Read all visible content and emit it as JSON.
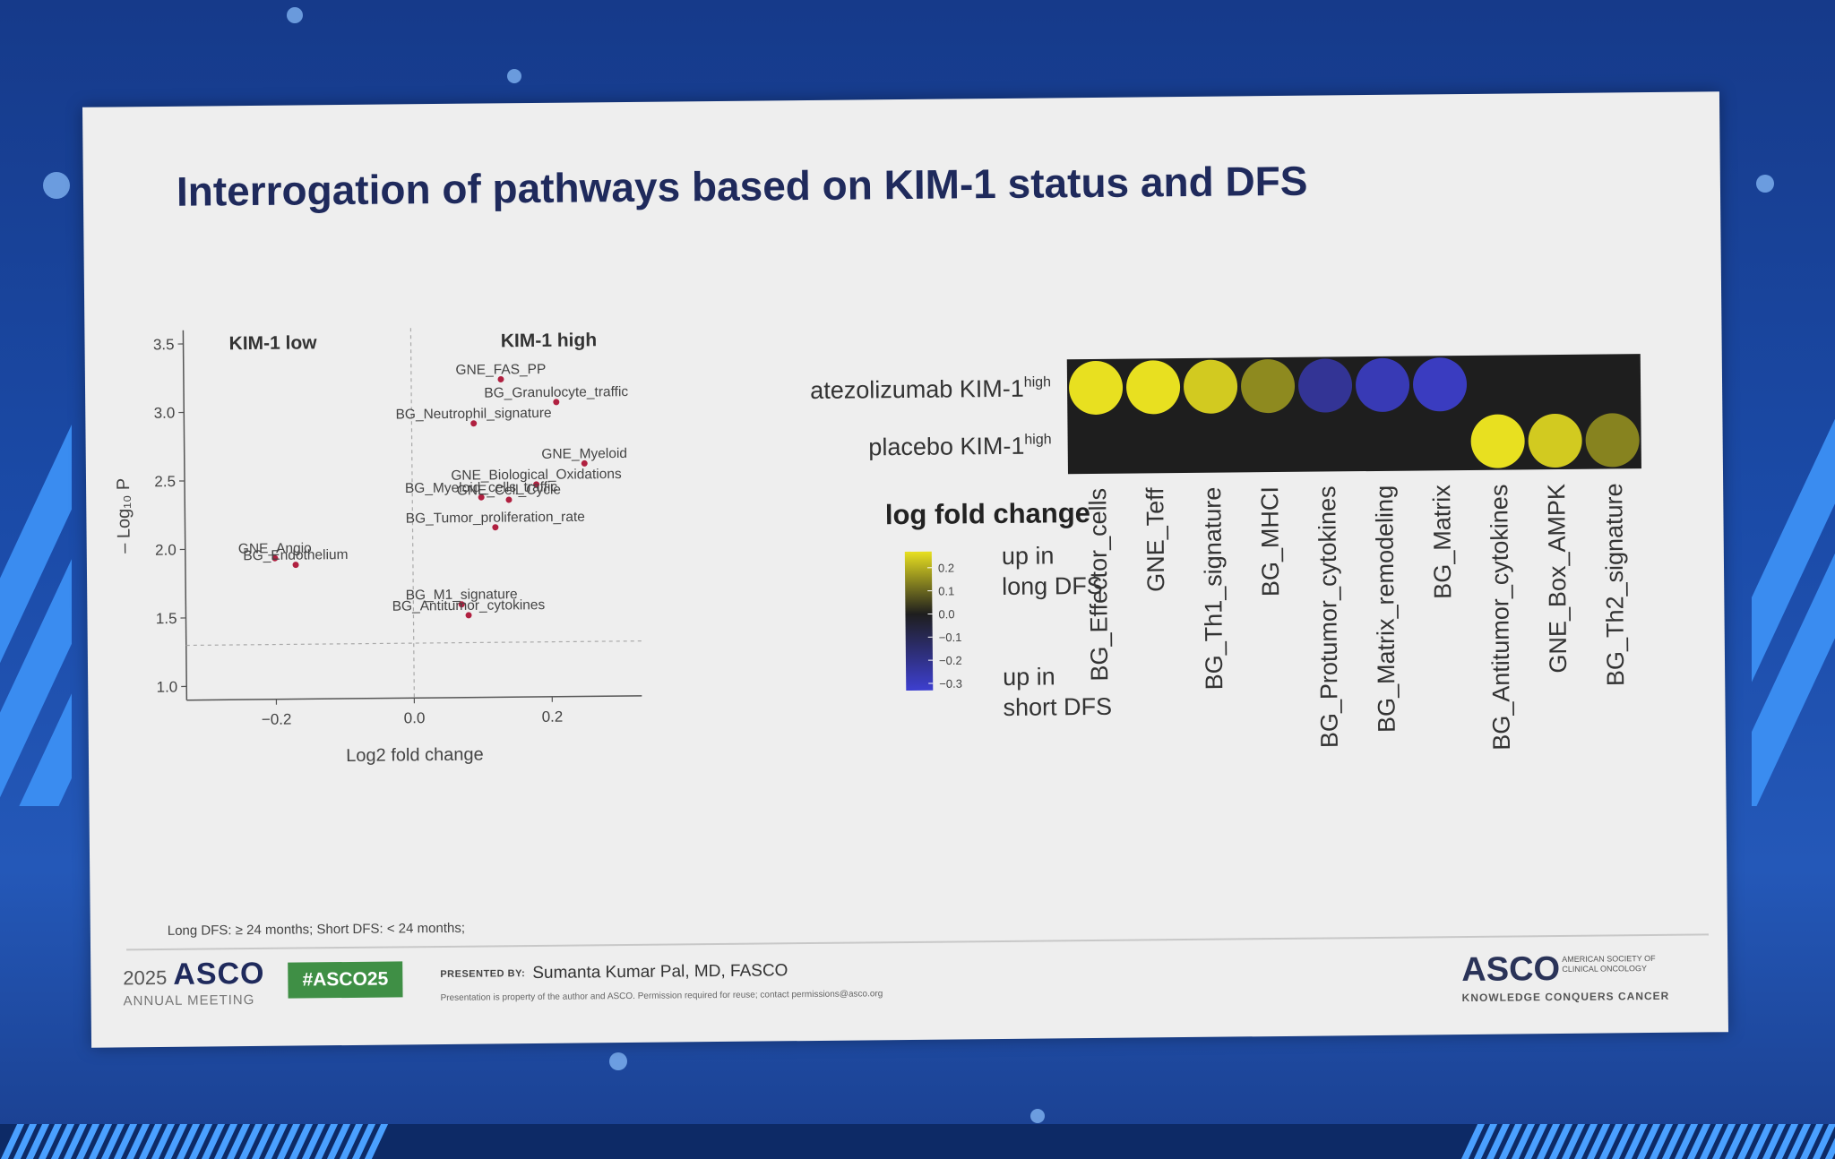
{
  "slide": {
    "title": "Interrogation of pathways based on KIM-1 status and DFS",
    "footnote": "Long DFS: ≥ 24 months; Short DFS: < 24 months;",
    "footer": {
      "year": "2025",
      "org": "ASCO",
      "meeting": "ANNUAL MEETING",
      "hashtag": "#ASCO25",
      "presented_by_label": "PRESENTED BY:",
      "presenter": "Sumanta Kumar Pal, MD, FASCO",
      "disclaimer": "Presentation is property of the author and ASCO. Permission required for reuse; contact permissions@asco.org",
      "right_logo": "ASCO",
      "right_logo_sub": "AMERICAN SOCIETY OF CLINICAL ONCOLOGY",
      "right_logo_tagline": "KNOWLEDGE CONQUERS CANCER"
    }
  },
  "chart_data": [
    {
      "type": "scatter",
      "xlabel": "Log2 fold change",
      "ylabel": "– Log₁₀ P",
      "xlim": [
        -0.33,
        0.33
      ],
      "ylim": [
        0.9,
        3.6
      ],
      "xticks": [
        -0.2,
        0.0,
        0.2
      ],
      "xtick_labels": [
        "−0.2",
        "0.0",
        "0.2"
      ],
      "yticks": [
        1.0,
        1.5,
        2.0,
        2.5,
        3.0,
        3.5
      ],
      "ytick_labels": [
        "1.0",
        "1.5",
        "2.0",
        "2.5",
        "3.0",
        "3.5"
      ],
      "threshold_y": 1.3,
      "threshold_x": 0.0,
      "region_labels": [
        "KIM-1 low",
        "KIM-1 high"
      ],
      "grid": false,
      "point_color": "#b02040",
      "points": [
        {
          "label": "GNE_FAS_PP",
          "x": 0.13,
          "y": 3.22
        },
        {
          "label": "BG_Granulocyte_traffic",
          "x": 0.21,
          "y": 3.05
        },
        {
          "label": "BG_Neutrophil_signature",
          "x": 0.09,
          "y": 2.9
        },
        {
          "label": "GNE_Myeloid",
          "x": 0.25,
          "y": 2.6
        },
        {
          "label": "GNE_Biological_Oxidations",
          "x": 0.18,
          "y": 2.45
        },
        {
          "label": "BG_Myeloid_cells_traffic",
          "x": 0.1,
          "y": 2.36
        },
        {
          "label": "GNE_Cell_Cycle",
          "x": 0.14,
          "y": 2.34
        },
        {
          "label": "BG_Tumor_proliferation_rate",
          "x": 0.12,
          "y": 2.14
        },
        {
          "label": "GNE_Angio",
          "x": -0.2,
          "y": 1.93
        },
        {
          "label": "BG_Endothelium",
          "x": -0.17,
          "y": 1.88
        },
        {
          "label": "BG_M1_signature",
          "x": 0.07,
          "y": 1.58
        },
        {
          "label": "BG_Antitumor_cytokines",
          "x": 0.08,
          "y": 1.5
        }
      ]
    },
    {
      "type": "heatmap",
      "rows": [
        "atezolizumab KIM-1",
        "placebo KIM-1"
      ],
      "row_superscript": "high",
      "columns": [
        "BG_Effector_cells",
        "GNE_Teff",
        "BG_Th1_signature",
        "BG_MHCI",
        "BG_Protumor_cytokines",
        "BG_Matrix_remodeling",
        "BG_Matrix",
        "BG_Antitumor_cytokines",
        "GNE_Box_AMPK",
        "BG_Th2_signature"
      ],
      "values": [
        [
          0.28,
          0.28,
          0.24,
          0.15,
          -0.22,
          -0.28,
          -0.3,
          null,
          null,
          null
        ],
        [
          null,
          null,
          null,
          null,
          null,
          null,
          null,
          0.27,
          0.24,
          0.14
        ]
      ],
      "legend": {
        "title": "log fold change",
        "ticks": [
          0.2,
          0.1,
          0.0,
          -0.1,
          -0.2,
          -0.3
        ],
        "tick_labels": [
          "0.2",
          "0.1",
          "0.0",
          "−0.1",
          "−0.2",
          "−0.3"
        ],
        "range": [
          -0.33,
          0.27
        ],
        "high_label": [
          "up in",
          "long DFS"
        ],
        "low_label": [
          "up in",
          "short DFS"
        ],
        "color_high": "#e8e020",
        "color_mid": "#1e1e1e",
        "color_low": "#3d3fd0"
      }
    }
  ]
}
